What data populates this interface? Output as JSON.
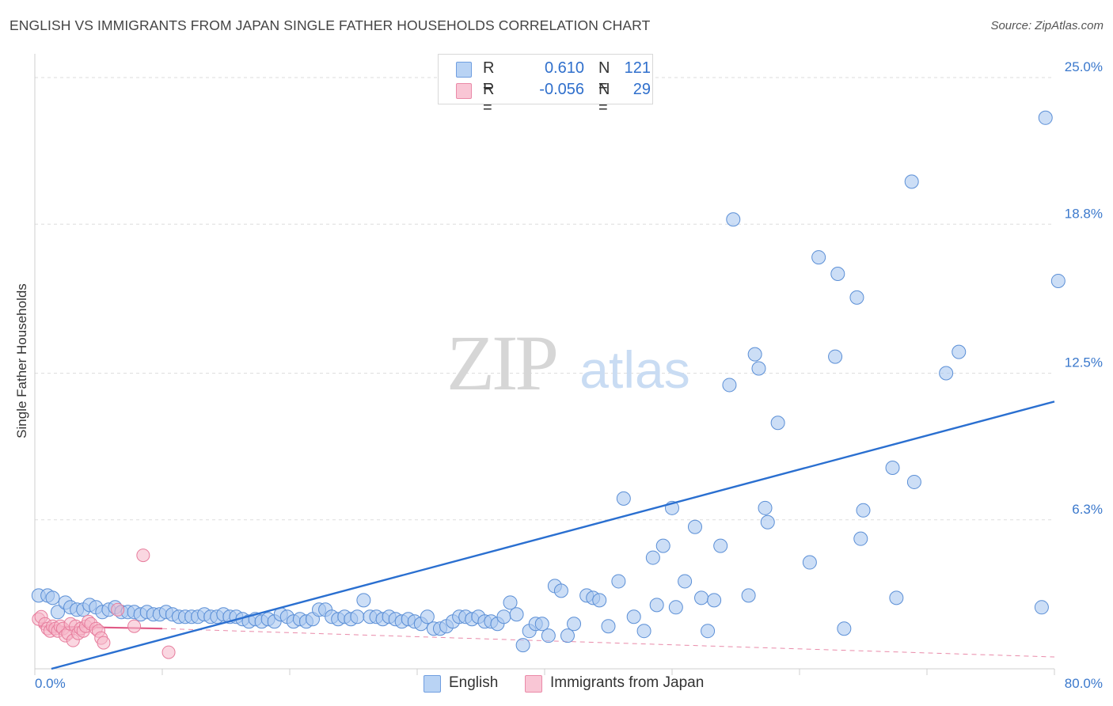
{
  "title": "ENGLISH VS IMMIGRANTS FROM JAPAN SINGLE FATHER HOUSEHOLDS CORRELATION CHART",
  "source": "Source: ZipAtlas.com",
  "watermark": {
    "zip": "ZIP",
    "atlas": "atlas"
  },
  "legend_box": {
    "rows": [
      {
        "r_label": "R =",
        "r_value": "0.610",
        "n_label": "N =",
        "n_value": "121"
      },
      {
        "r_label": "R =",
        "r_value": "-0.056",
        "n_label": "N =",
        "n_value": "29"
      }
    ]
  },
  "bottom_legend": [
    "English",
    "Immigrants from Japan"
  ],
  "colors": {
    "english_fill": "#aac8f0",
    "english_stroke": "#5b8fd6",
    "english_line": "#2a6fd0",
    "japan_fill": "#f6b7c9",
    "japan_stroke": "#e77d9d",
    "japan_line": "#e05a86",
    "grid": "#dddddd",
    "tick_label": "#3a78cc"
  },
  "chart_data": {
    "type": "scatter",
    "title": "ENGLISH VS IMMIGRANTS FROM JAPAN SINGLE FATHER HOUSEHOLDS CORRELATION CHART",
    "xlabel": "",
    "ylabel": "Single Father Households",
    "xlim": [
      0,
      80
    ],
    "ylim": [
      0,
      25.0
    ],
    "x_tick_labels": [
      "0.0%",
      "80.0%"
    ],
    "y_ticks": [
      6.3,
      12.5,
      18.8,
      25.0
    ],
    "y_tick_labels": [
      "6.3%",
      "12.5%",
      "18.8%",
      "25.0%"
    ],
    "grid": true,
    "series": [
      {
        "name": "English",
        "r": 0.61,
        "n": 121,
        "trend": {
          "x": [
            1.3,
            80
          ],
          "y": [
            0.0,
            11.3
          ]
        },
        "points": [
          [
            0.3,
            3.1
          ],
          [
            1.0,
            3.1
          ],
          [
            1.4,
            3.0
          ],
          [
            1.8,
            2.4
          ],
          [
            2.4,
            2.8
          ],
          [
            2.8,
            2.6
          ],
          [
            3.3,
            2.5
          ],
          [
            3.8,
            2.5
          ],
          [
            4.3,
            2.7
          ],
          [
            4.8,
            2.6
          ],
          [
            5.3,
            2.4
          ],
          [
            5.8,
            2.5
          ],
          [
            6.3,
            2.6
          ],
          [
            6.8,
            2.4
          ],
          [
            7.3,
            2.4
          ],
          [
            7.8,
            2.4
          ],
          [
            8.3,
            2.3
          ],
          [
            8.8,
            2.4
          ],
          [
            9.3,
            2.3
          ],
          [
            9.8,
            2.3
          ],
          [
            10.3,
            2.4
          ],
          [
            10.8,
            2.3
          ],
          [
            11.3,
            2.2
          ],
          [
            11.8,
            2.2
          ],
          [
            12.3,
            2.2
          ],
          [
            12.8,
            2.2
          ],
          [
            13.3,
            2.3
          ],
          [
            13.8,
            2.2
          ],
          [
            14.3,
            2.2
          ],
          [
            14.8,
            2.3
          ],
          [
            15.3,
            2.2
          ],
          [
            15.8,
            2.2
          ],
          [
            16.3,
            2.1
          ],
          [
            16.8,
            2.0
          ],
          [
            17.3,
            2.1
          ],
          [
            17.8,
            2.0
          ],
          [
            18.3,
            2.1
          ],
          [
            18.8,
            2.0
          ],
          [
            19.3,
            2.3
          ],
          [
            19.8,
            2.2
          ],
          [
            20.3,
            2.0
          ],
          [
            20.8,
            2.1
          ],
          [
            21.3,
            2.0
          ],
          [
            21.8,
            2.1
          ],
          [
            22.3,
            2.5
          ],
          [
            22.8,
            2.5
          ],
          [
            23.3,
            2.2
          ],
          [
            23.8,
            2.1
          ],
          [
            24.3,
            2.2
          ],
          [
            24.8,
            2.1
          ],
          [
            25.3,
            2.2
          ],
          [
            25.8,
            2.9
          ],
          [
            26.3,
            2.2
          ],
          [
            26.8,
            2.2
          ],
          [
            27.3,
            2.1
          ],
          [
            27.8,
            2.2
          ],
          [
            28.3,
            2.1
          ],
          [
            28.8,
            2.0
          ],
          [
            29.3,
            2.1
          ],
          [
            29.8,
            2.0
          ],
          [
            30.3,
            1.9
          ],
          [
            30.8,
            2.2
          ],
          [
            31.3,
            1.7
          ],
          [
            31.8,
            1.7
          ],
          [
            32.3,
            1.8
          ],
          [
            32.8,
            2.0
          ],
          [
            33.3,
            2.2
          ],
          [
            33.8,
            2.2
          ],
          [
            34.3,
            2.1
          ],
          [
            34.8,
            2.2
          ],
          [
            35.3,
            2.0
          ],
          [
            35.8,
            2.0
          ],
          [
            36.3,
            1.9
          ],
          [
            36.8,
            2.2
          ],
          [
            37.3,
            2.8
          ],
          [
            37.8,
            2.3
          ],
          [
            38.3,
            1.0
          ],
          [
            38.8,
            1.6
          ],
          [
            39.3,
            1.9
          ],
          [
            39.8,
            1.9
          ],
          [
            40.3,
            1.4
          ],
          [
            40.8,
            3.5
          ],
          [
            41.3,
            3.3
          ],
          [
            41.8,
            1.4
          ],
          [
            42.3,
            1.9
          ],
          [
            43.3,
            3.1
          ],
          [
            43.8,
            3.0
          ],
          [
            44.3,
            2.9
          ],
          [
            45.0,
            1.8
          ],
          [
            45.8,
            3.7
          ],
          [
            46.2,
            7.2
          ],
          [
            47.0,
            2.2
          ],
          [
            47.8,
            1.6
          ],
          [
            48.5,
            4.7
          ],
          [
            48.8,
            2.7
          ],
          [
            49.3,
            5.2
          ],
          [
            50.0,
            6.8
          ],
          [
            50.3,
            2.6
          ],
          [
            51.0,
            3.7
          ],
          [
            51.8,
            6.0
          ],
          [
            52.3,
            3.0
          ],
          [
            52.8,
            1.6
          ],
          [
            53.3,
            2.9
          ],
          [
            53.8,
            5.2
          ],
          [
            54.5,
            12.0
          ],
          [
            54.8,
            19.0
          ],
          [
            56.0,
            3.1
          ],
          [
            56.5,
            13.3
          ],
          [
            56.8,
            12.7
          ],
          [
            57.3,
            6.8
          ],
          [
            57.5,
            6.2
          ],
          [
            58.3,
            10.4
          ],
          [
            60.8,
            4.5
          ],
          [
            61.5,
            17.4
          ],
          [
            62.8,
            13.2
          ],
          [
            63.0,
            16.7
          ],
          [
            63.5,
            1.7
          ],
          [
            64.5,
            15.7
          ],
          [
            64.8,
            5.5
          ],
          [
            65.0,
            6.7
          ],
          [
            67.3,
            8.5
          ],
          [
            67.6,
            3.0
          ],
          [
            68.8,
            20.6
          ],
          [
            69.0,
            7.9
          ],
          [
            71.5,
            12.5
          ],
          [
            72.5,
            13.4
          ],
          [
            79.0,
            2.6
          ],
          [
            79.3,
            23.3
          ],
          [
            80.3,
            16.4
          ]
        ]
      },
      {
        "name": "Immigrants from Japan",
        "r": -0.056,
        "n": 29,
        "trend": {
          "x": [
            0.3,
            10.0
          ],
          "y": [
            1.8,
            1.7
          ]
        },
        "trend_extended": {
          "x": [
            10.0,
            80
          ],
          "y": [
            1.7,
            0.5
          ]
        },
        "points": [
          [
            0.3,
            2.1
          ],
          [
            0.5,
            2.2
          ],
          [
            0.8,
            1.9
          ],
          [
            1.0,
            1.7
          ],
          [
            1.2,
            1.6
          ],
          [
            1.4,
            1.8
          ],
          [
            1.6,
            1.7
          ],
          [
            1.8,
            1.6
          ],
          [
            2.0,
            1.8
          ],
          [
            2.2,
            1.7
          ],
          [
            2.4,
            1.4
          ],
          [
            2.6,
            1.5
          ],
          [
            2.8,
            1.9
          ],
          [
            3.0,
            1.2
          ],
          [
            3.2,
            1.8
          ],
          [
            3.4,
            1.5
          ],
          [
            3.6,
            1.7
          ],
          [
            3.8,
            1.6
          ],
          [
            4.0,
            1.8
          ],
          [
            4.2,
            2.0
          ],
          [
            4.4,
            1.9
          ],
          [
            4.8,
            1.7
          ],
          [
            5.0,
            1.6
          ],
          [
            5.2,
            1.3
          ],
          [
            5.4,
            1.1
          ],
          [
            6.5,
            2.5
          ],
          [
            7.8,
            1.8
          ],
          [
            8.5,
            4.8
          ],
          [
            10.5,
            0.7
          ]
        ]
      }
    ]
  }
}
